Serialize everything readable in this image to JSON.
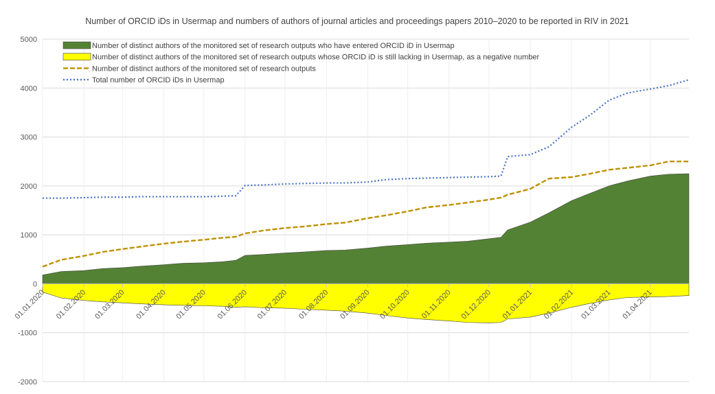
{
  "chart_data": {
    "type": "area",
    "title": "Number of ORCID iDs in Usermap and numbers of authors of journal articles and proceedings papers  2010–2020 to be reported in RIV in 2021",
    "xlabel": "",
    "ylabel": "",
    "ylim": [
      -2000,
      5000
    ],
    "yticks": [
      -2000,
      -1000,
      0,
      1000,
      2000,
      3000,
      4000,
      5000
    ],
    "grid": true,
    "legend_position": "top-left",
    "x": [
      "01.01.2020",
      "15.01.2020",
      "01.02.2020",
      "15.02.2020",
      "01.03.2020",
      "15.03.2020",
      "01.04.2020",
      "15.04.2020",
      "01.05.2020",
      "15.05.2020",
      "25.05.2020",
      "01.06.2020",
      "15.06.2020",
      "01.07.2020",
      "15.07.2020",
      "01.08.2020",
      "15.08.2020",
      "01.09.2020",
      "15.09.2020",
      "01.10.2020",
      "15.10.2020",
      "01.11.2020",
      "15.11.2020",
      "01.12.2020",
      "10.12.2020",
      "15.12.2020",
      "01.01.2021",
      "15.01.2021",
      "01.02.2021",
      "15.02.2021",
      "01.03.2021",
      "15.03.2021",
      "01.04.2021",
      "15.04.2021",
      "30.04.2021"
    ],
    "xticks": [
      "01.01.2020",
      "01.02.2020",
      "01.03.2020",
      "01.04.2020",
      "01.05.2020",
      "01.06.2020",
      "01.07.2020",
      "01.08.2020",
      "01.09.2020",
      "01.10.2020",
      "01.11.2020",
      "01.12.2020",
      "01.01.2021",
      "01.02.2021",
      "01.03.2021",
      "01.04.2021"
    ],
    "series": [
      {
        "name": "Number of distinct authors of the monitored set of research outputs who have entered ORCID iD in Usermap",
        "kind": "area",
        "color": "#548235",
        "values": [
          180,
          250,
          270,
          310,
          330,
          360,
          390,
          420,
          430,
          450,
          480,
          580,
          600,
          630,
          650,
          680,
          690,
          730,
          770,
          800,
          830,
          850,
          870,
          920,
          950,
          1100,
          1260,
          1450,
          1700,
          1850,
          2000,
          2100,
          2200,
          2240,
          2250
        ]
      },
      {
        "name": "Number of distinct authors of the monitored set of research outputs whose ORCID iD is still lacking in Usermap, as a negative number",
        "kind": "area",
        "color": "#ffff00",
        "values": [
          -170,
          -290,
          -340,
          -370,
          -390,
          -410,
          -430,
          -440,
          -450,
          -460,
          -480,
          -470,
          -490,
          -500,
          -520,
          -540,
          -560,
          -600,
          -650,
          -700,
          -730,
          -760,
          -790,
          -800,
          -790,
          -720,
          -680,
          -600,
          -480,
          -400,
          -330,
          -280,
          -270,
          -260,
          -240
        ]
      },
      {
        "name": "Number of distinct authors of the monitored set of research outputs",
        "kind": "line",
        "style": "dashed",
        "color": "#bf9000",
        "values": [
          350,
          490,
          570,
          650,
          710,
          760,
          820,
          860,
          900,
          940,
          960,
          1030,
          1090,
          1140,
          1170,
          1220,
          1250,
          1340,
          1400,
          1480,
          1560,
          1610,
          1660,
          1720,
          1760,
          1820,
          1940,
          2150,
          2180,
          2250,
          2330,
          2370,
          2420,
          2500,
          2500
        ]
      },
      {
        "name": "Total number of ORCID iDs in Usermap",
        "kind": "line",
        "style": "dotted",
        "color": "#4472c4",
        "values": [
          1750,
          1750,
          1760,
          1770,
          1770,
          1780,
          1780,
          1780,
          1780,
          1790,
          1800,
          2010,
          2020,
          2040,
          2050,
          2060,
          2060,
          2080,
          2130,
          2150,
          2160,
          2170,
          2180,
          2190,
          2200,
          2600,
          2640,
          2800,
          3200,
          3450,
          3750,
          3900,
          3980,
          4050,
          4170
        ]
      }
    ]
  }
}
